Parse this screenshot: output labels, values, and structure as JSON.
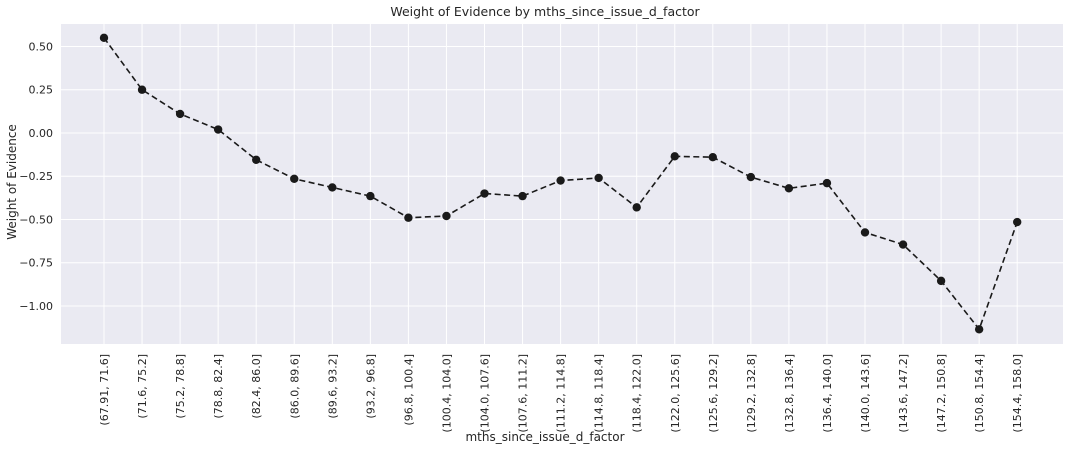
{
  "chart_data": {
    "type": "line",
    "title": "Weight of Evidence by mths_since_issue_d_factor",
    "xlabel": "mths_since_issue_d_factor",
    "ylabel": "Weight of Evidence",
    "ylim": [
      -1.22,
      0.63
    ],
    "yticks": [
      0.5,
      0.25,
      0.0,
      -0.25,
      -0.5,
      -0.75,
      -1.0
    ],
    "ytick_labels": [
      "0.50",
      "0.25",
      "0.00",
      "−0.25",
      "−0.50",
      "−0.75",
      "−1.00"
    ],
    "grid": true,
    "style": {
      "background": "#EAEAF2",
      "grid_color": "#FFFFFF",
      "line_color": "#1A1A1A",
      "linestyle": "dashed",
      "marker": "circle"
    },
    "categories": [
      "(67.91, 71.6]",
      "(71.6, 75.2]",
      "(75.2, 78.8]",
      "(78.8, 82.4]",
      "(82.4, 86.0]",
      "(86.0, 89.6]",
      "(89.6, 93.2]",
      "(93.2, 96.8]",
      "(96.8, 100.4]",
      "(100.4, 104.0]",
      "(104.0, 107.6]",
      "(107.6, 111.2]",
      "(111.2, 114.8]",
      "(114.8, 118.4]",
      "(118.4, 122.0]",
      "(122.0, 125.6]",
      "(125.6, 129.2]",
      "(129.2, 132.8]",
      "(132.8, 136.4]",
      "(136.4, 140.0]",
      "(140.0, 143.6]",
      "(143.6, 147.2]",
      "(147.2, 150.8]",
      "(150.8, 154.4]",
      "(154.4, 158.0]"
    ],
    "values": [
      0.55,
      0.25,
      0.11,
      0.02,
      -0.155,
      -0.265,
      -0.315,
      -0.365,
      -0.49,
      -0.48,
      -0.35,
      -0.365,
      -0.275,
      -0.26,
      -0.43,
      -0.135,
      -0.14,
      -0.255,
      -0.32,
      -0.29,
      -0.575,
      -0.645,
      -0.855,
      -1.135,
      -0.515
    ]
  }
}
